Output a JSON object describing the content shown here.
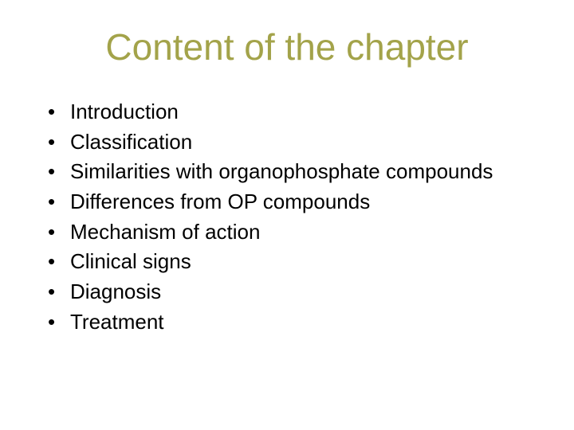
{
  "title": "Content of the chapter",
  "title_color": "#a3a34a",
  "body_color": "#000000",
  "title_fontsize": 46,
  "item_fontsize": 26,
  "background_color": "#ffffff",
  "bullet_char": "•",
  "items": [
    "Introduction",
    "Classification",
    "Similarities  with organophosphate compounds",
    "Differences from OP compounds",
    "Mechanism of action",
    "Clinical signs",
    "Diagnosis",
    "Treatment"
  ]
}
